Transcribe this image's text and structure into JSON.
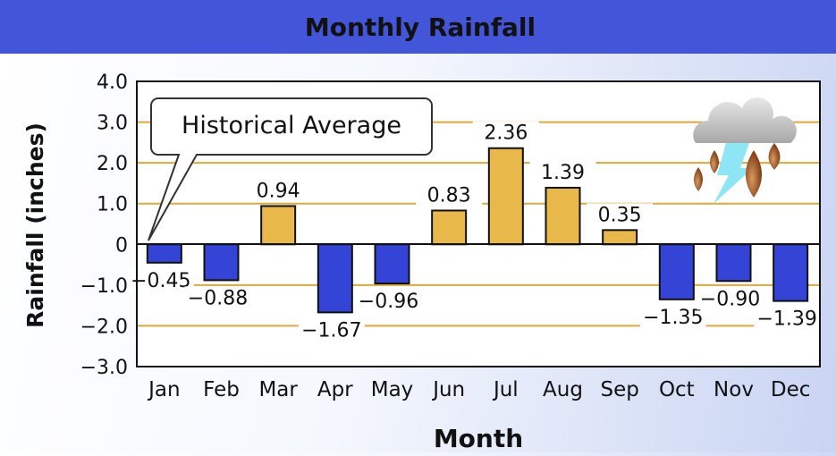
{
  "chart_data": {
    "type": "bar",
    "title": "Monthly Rainfall",
    "xlabel": "Month",
    "ylabel": "Rainfall (inches)",
    "categories": [
      "Jan",
      "Feb",
      "Mar",
      "Apr",
      "May",
      "Jun",
      "Jul",
      "Aug",
      "Sep",
      "Oct",
      "Nov",
      "Dec"
    ],
    "values": [
      -0.45,
      -0.88,
      0.94,
      -1.67,
      -0.96,
      0.83,
      2.36,
      1.39,
      0.35,
      -1.35,
      -0.9,
      -1.39
    ],
    "data_labels": [
      "−0.45",
      "−0.88",
      "0.94",
      "−1.67",
      "−0.96",
      "0.83",
      "2.36",
      "1.39",
      "0.35",
      "−1.35",
      "−0.90",
      "−1.39"
    ],
    "ylim": [
      -3.0,
      4.0
    ],
    "yticks": [
      4.0,
      3.0,
      2.0,
      1.0,
      0,
      -1.0,
      -2.0,
      -3.0
    ],
    "ytick_labels": [
      "4.0",
      "3.0",
      "2.0",
      "1.0",
      "0",
      "−1.0",
      "−2.0",
      "−3.0"
    ],
    "grid": true,
    "annotation": "Historical Average",
    "colors": {
      "positive": "#e8b84a",
      "negative": "#3344d6",
      "grid": "#e0a838",
      "title_bar": "#4355d8"
    },
    "icon": "storm-cloud-icon"
  }
}
